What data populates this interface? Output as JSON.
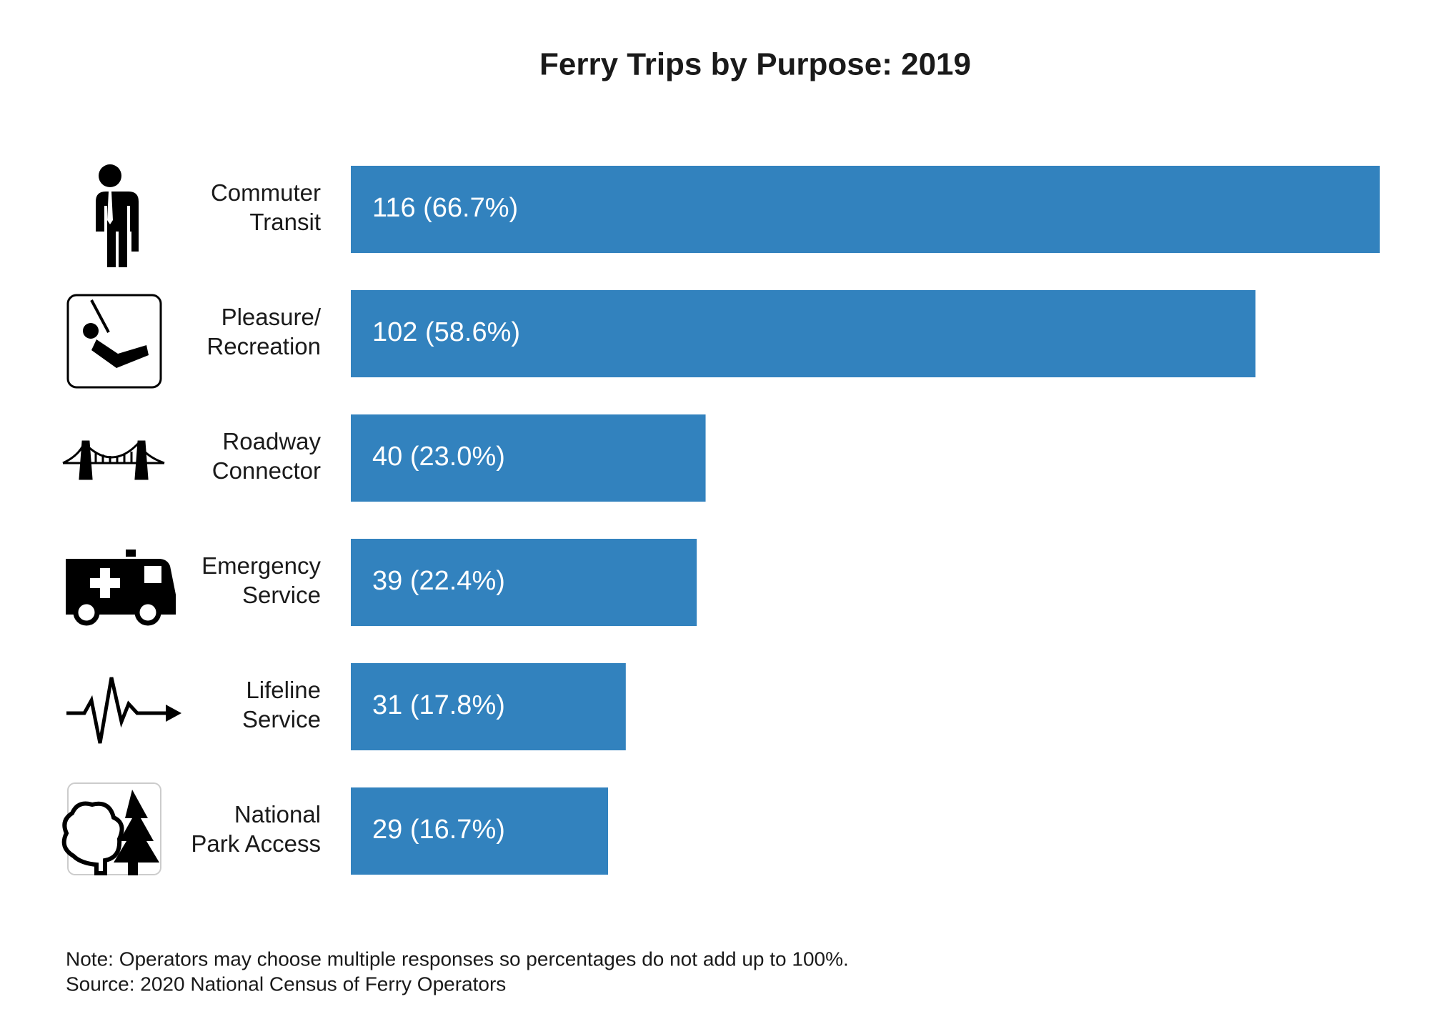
{
  "chart_data": {
    "type": "bar",
    "orientation": "horizontal",
    "title": "Ferry Trips by Purpose: 2019",
    "categories": [
      [
        "Commuter",
        "Transit"
      ],
      [
        "Pleasure/",
        "Recreation"
      ],
      [
        "Roadway",
        "Connector"
      ],
      [
        "Emergency",
        "Service"
      ],
      [
        "Lifeline",
        "Service"
      ],
      [
        "National",
        "Park Access"
      ]
    ],
    "values": [
      116,
      102,
      40,
      39,
      31,
      29
    ],
    "value_labels": [
      "116 (66.7%)",
      "102 (58.6%)",
      "40 (23.0%)",
      "39 (22.4%)",
      "31 (17.8%)",
      "29 (16.7%)"
    ],
    "color": "#3282be",
    "notes": [
      "Note: Operators may choose multiple responses so percentages do not add up to 100%.",
      "Source: 2020 National Census of Ferry Operators"
    ]
  }
}
